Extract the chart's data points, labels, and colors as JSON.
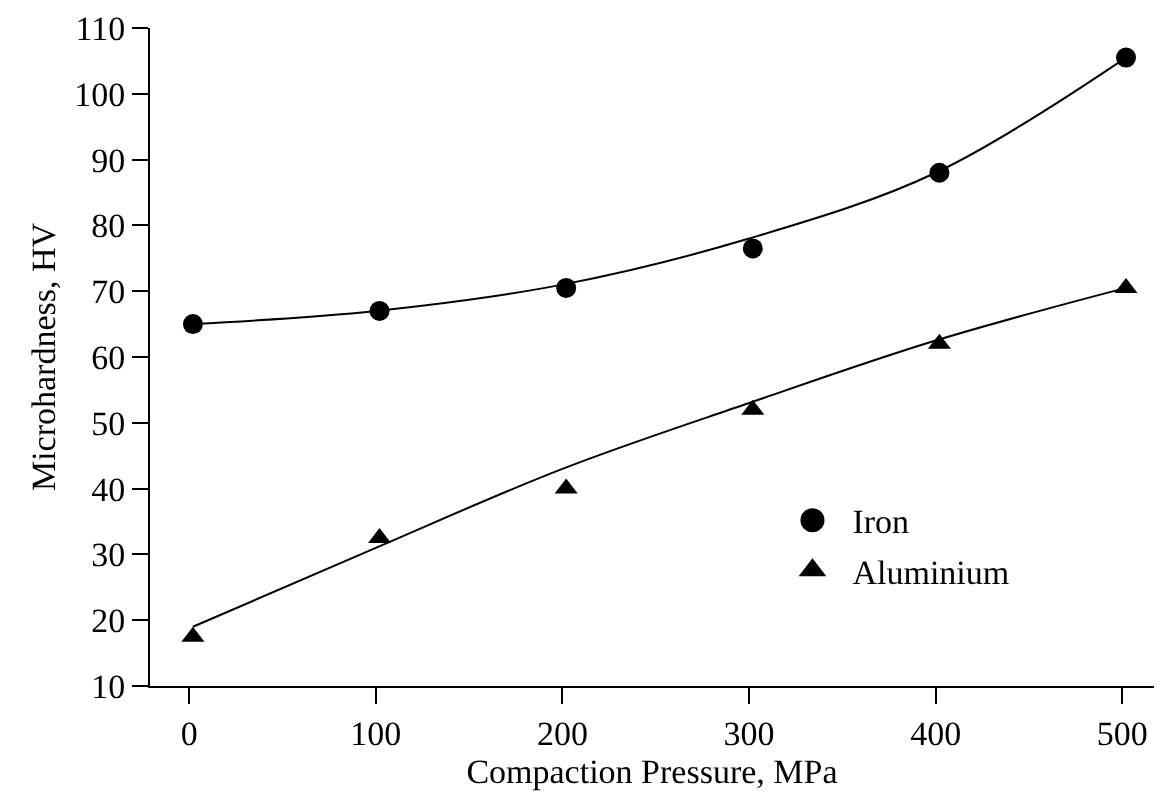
{
  "chart_data": {
    "type": "scatter",
    "xlabel": "Compaction Pressure, MPa",
    "ylabel": "Microhardness, HV",
    "x": [
      2,
      102,
      202,
      302,
      402,
      502
    ],
    "series": [
      {
        "name": "Iron",
        "color": "#000000",
        "marker": "circle",
        "values": [
          65,
          67,
          70.5,
          76.5,
          88,
          105.5
        ]
      },
      {
        "name": "Aluminium",
        "color": "#000000",
        "marker": "triangle",
        "values": [
          17.5,
          32.5,
          40,
          52,
          62,
          70.5
        ]
      },
      {
        "type": "line",
        "color": "#000000",
        "x": [
          2,
          100,
          200,
          300,
          400,
          502
        ],
        "values": [
          65,
          67,
          71,
          78,
          88,
          105.5
        ]
      },
      {
        "type": "line",
        "color": "#000000",
        "x": [
          2,
          100,
          200,
          300,
          400,
          502
        ],
        "values": [
          19,
          31,
          43,
          53,
          62.5,
          70.5
        ]
      }
    ],
    "xlim": [
      -21,
      517
    ],
    "xticks": [
      0,
      100,
      200,
      300,
      400,
      500
    ],
    "ylim": [
      10,
      110
    ],
    "yticks": [
      10,
      20,
      30,
      40,
      50,
      60,
      70,
      80,
      90,
      100,
      110
    ],
    "legend": "bottom right"
  }
}
